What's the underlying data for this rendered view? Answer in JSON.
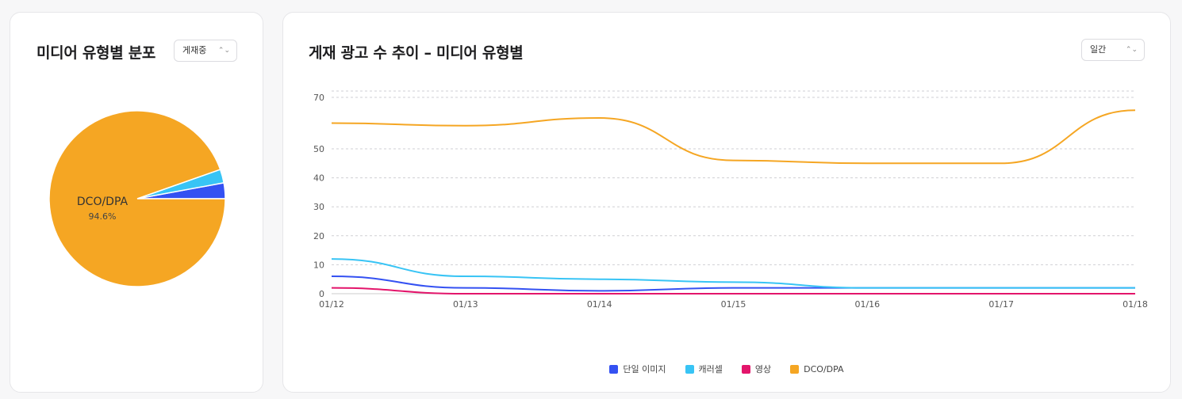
{
  "left_card": {
    "title": "미디어 유형별 분포",
    "status_select": {
      "value": "게재중"
    }
  },
  "right_card": {
    "title": "게재 광고 수 추이 – 미디어 유형별",
    "period_select": {
      "value": "일간"
    }
  },
  "colors": {
    "single_image": "#3451f2",
    "carousel": "#38c4f5",
    "video": "#e3156b",
    "dco_dpa": "#f5a623"
  },
  "chart_data": [
    {
      "type": "pie",
      "labels": [
        "단일 이미지",
        "캐러셀",
        "영상",
        "DCO/DPA"
      ],
      "values": [
        2.9,
        2.5,
        0.0,
        94.6
      ],
      "colors": [
        "#3451f2",
        "#38c4f5",
        "#e3156b",
        "#f5a623"
      ],
      "data_labels": [
        {
          "name": "DCO/DPA",
          "value": "94.6%"
        }
      ]
    },
    {
      "type": "line",
      "categories": [
        "01/12",
        "01/13",
        "01/14",
        "01/15",
        "01/16",
        "01/17",
        "01/18"
      ],
      "y_ticks": [
        "0",
        "10",
        "20",
        "30",
        "40",
        "50",
        "70"
      ],
      "ylim": [
        0,
        70
      ],
      "grid": true,
      "legend_position": "bottom",
      "series": [
        {
          "name": "단일 이미지",
          "color": "#3451f2",
          "values": [
            6,
            2,
            1,
            2,
            2,
            2,
            2
          ]
        },
        {
          "name": "캐러셀",
          "color": "#38c4f5",
          "values": [
            12,
            6,
            5,
            4,
            2,
            2,
            2
          ]
        },
        {
          "name": "영상",
          "color": "#e3156b",
          "values": [
            2,
            0,
            0,
            0,
            0,
            0,
            0
          ]
        },
        {
          "name": "DCO/DPA",
          "color": "#f5a623",
          "values": [
            60,
            59,
            62,
            46,
            45,
            45,
            65
          ]
        }
      ]
    }
  ]
}
